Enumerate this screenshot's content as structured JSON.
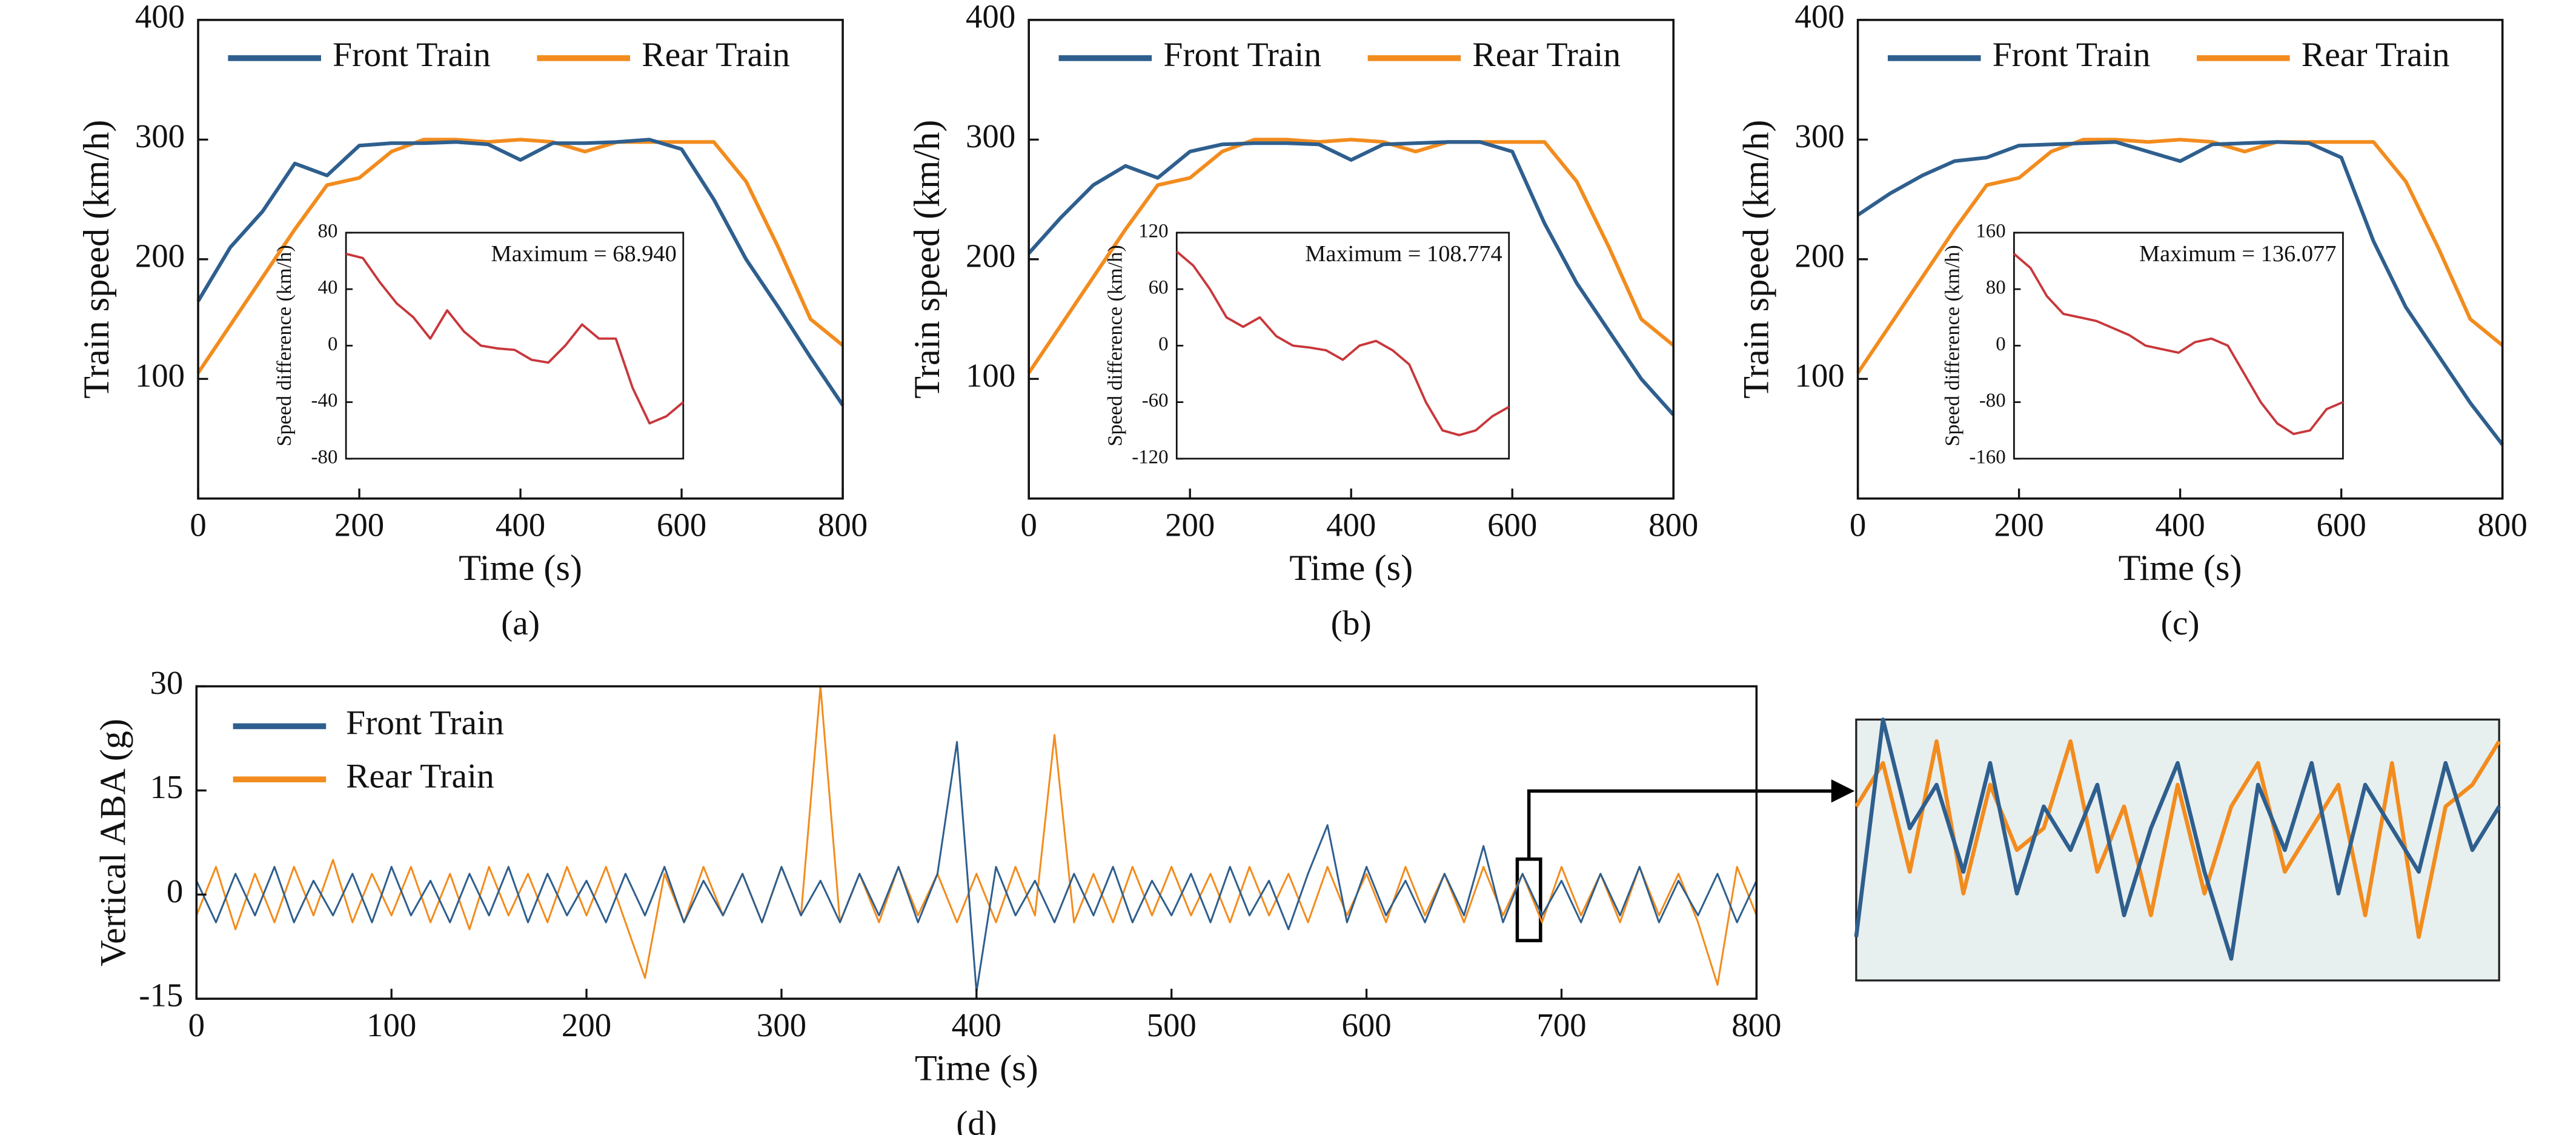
{
  "chart_data": [
    {
      "type": "line",
      "caption": "(a)",
      "xlabel": "Time (s)",
      "ylabel": "Train speed (km/h)",
      "legend": "upper center",
      "x": [
        0,
        40,
        80,
        120,
        160,
        200,
        240,
        280,
        320,
        360,
        400,
        440,
        480,
        520,
        560,
        600,
        640,
        680,
        720,
        760,
        800
      ],
      "xlim": [
        0,
        800
      ],
      "xticks": [
        0,
        200,
        400,
        600,
        800
      ],
      "ylim": [
        0,
        400
      ],
      "yticks": [
        100,
        200,
        300,
        400
      ],
      "series": [
        {
          "name": "Front Train",
          "color": "#2e5f8e",
          "values": [
            165,
            210,
            240,
            280,
            270,
            295,
            297,
            297,
            298,
            296,
            283,
            297,
            297,
            298,
            300,
            292,
            250,
            200,
            160,
            118,
            78
          ]
        },
        {
          "name": "Rear Train",
          "color": "#f28c1e",
          "values": [
            105,
            145,
            185,
            225,
            262,
            268,
            290,
            300,
            300,
            298,
            300,
            298,
            290,
            298,
            298,
            298,
            298,
            265,
            210,
            150,
            128
          ]
        }
      ],
      "inset": {
        "ylabel": "Speed difference (km/h)",
        "annotation": "Maximum = 68.940",
        "ylim": [
          -80,
          80
        ],
        "yticks": [
          -80,
          -40,
          0,
          40,
          80
        ],
        "color": "#c8373b",
        "values": [
          65,
          62,
          45,
          30,
          20,
          5,
          25,
          10,
          0,
          -2,
          -3,
          -10,
          -12,
          0,
          15,
          5,
          5,
          -30,
          -55,
          -50,
          -40
        ]
      }
    },
    {
      "type": "line",
      "caption": "(b)",
      "xlabel": "Time (s)",
      "ylabel": "Train speed (km/h)",
      "legend": "upper center",
      "x": [
        0,
        40,
        80,
        120,
        160,
        200,
        240,
        280,
        320,
        360,
        400,
        440,
        480,
        520,
        560,
        600,
        640,
        680,
        720,
        760,
        800
      ],
      "xlim": [
        0,
        800
      ],
      "xticks": [
        0,
        200,
        400,
        600,
        800
      ],
      "ylim": [
        0,
        400
      ],
      "yticks": [
        100,
        200,
        300,
        400
      ],
      "series": [
        {
          "name": "Front Train",
          "color": "#2e5f8e",
          "values": [
            205,
            235,
            262,
            278,
            268,
            290,
            296,
            297,
            297,
            296,
            283,
            296,
            297,
            298,
            298,
            290,
            230,
            180,
            140,
            100,
            70
          ]
        },
        {
          "name": "Rear Train",
          "color": "#f28c1e",
          "values": [
            105,
            145,
            185,
            225,
            262,
            268,
            290,
            300,
            300,
            298,
            300,
            298,
            290,
            298,
            298,
            298,
            298,
            265,
            210,
            150,
            128
          ]
        }
      ],
      "inset": {
        "ylabel": "Speed difference (km/h)",
        "annotation": "Maximum = 108.774",
        "ylim": [
          -120,
          120
        ],
        "yticks": [
          -120,
          -60,
          0,
          60,
          120
        ],
        "color": "#c8373b",
        "values": [
          100,
          85,
          60,
          30,
          20,
          30,
          10,
          0,
          -2,
          -5,
          -15,
          0,
          5,
          -5,
          -20,
          -60,
          -90,
          -95,
          -90,
          -75,
          -65
        ]
      }
    },
    {
      "type": "line",
      "caption": "(c)",
      "xlabel": "Time (s)",
      "ylabel": "Train speed (km/h)",
      "legend": "upper center",
      "x": [
        0,
        40,
        80,
        120,
        160,
        200,
        240,
        280,
        320,
        360,
        400,
        440,
        480,
        520,
        560,
        600,
        640,
        680,
        720,
        760,
        800
      ],
      "xlim": [
        0,
        800
      ],
      "xticks": [
        0,
        200,
        400,
        600,
        800
      ],
      "ylim": [
        0,
        400
      ],
      "yticks": [
        100,
        200,
        300,
        400
      ],
      "series": [
        {
          "name": "Front Train",
          "color": "#2e5f8e",
          "values": [
            237,
            255,
            270,
            282,
            285,
            295,
            296,
            297,
            298,
            290,
            282,
            296,
            297,
            298,
            297,
            285,
            215,
            160,
            120,
            80,
            45
          ]
        },
        {
          "name": "Rear Train",
          "color": "#f28c1e",
          "values": [
            105,
            145,
            185,
            225,
            262,
            268,
            290,
            300,
            300,
            298,
            300,
            298,
            290,
            298,
            298,
            298,
            298,
            265,
            210,
            150,
            128
          ]
        }
      ],
      "inset": {
        "ylabel": "Speed difference (km/h)",
        "annotation": "Maximum = 136.077",
        "ylim": [
          -160,
          160
        ],
        "yticks": [
          -160,
          -80,
          0,
          80,
          160
        ],
        "color": "#c8373b",
        "values": [
          130,
          110,
          70,
          45,
          40,
          35,
          25,
          15,
          0,
          -5,
          -10,
          5,
          10,
          0,
          -40,
          -80,
          -110,
          -125,
          -120,
          -90,
          -80
        ]
      }
    },
    {
      "type": "line",
      "caption": "(d)",
      "xlabel": "Time (s)",
      "ylabel": "Vertical ABA (g)",
      "legend": "upper left",
      "x": [
        0,
        10,
        20,
        30,
        40,
        50,
        60,
        70,
        80,
        90,
        100,
        110,
        120,
        130,
        140,
        150,
        160,
        170,
        180,
        190,
        200,
        210,
        220,
        230,
        240,
        250,
        260,
        270,
        280,
        290,
        300,
        310,
        320,
        330,
        340,
        350,
        360,
        370,
        380,
        390,
        400,
        410,
        420,
        430,
        440,
        450,
        460,
        470,
        480,
        490,
        500,
        510,
        520,
        530,
        540,
        550,
        560,
        570,
        580,
        590,
        600,
        610,
        620,
        630,
        640,
        650,
        660,
        670,
        680,
        690,
        700,
        710,
        720,
        730,
        740,
        750,
        760,
        770,
        780,
        790,
        800
      ],
      "xlim": [
        0,
        800
      ],
      "xticks": [
        0,
        100,
        200,
        300,
        400,
        500,
        600,
        700,
        800
      ],
      "ylim": [
        -15,
        30
      ],
      "yticks": [
        -15,
        0,
        15,
        30
      ],
      "series": [
        {
          "name": "Front Train",
          "color": "#2e5f8e",
          "values": [
            2,
            -4,
            3,
            -3,
            4,
            -4,
            2,
            -3,
            3,
            -4,
            4,
            -3,
            2,
            -4,
            3,
            -3,
            4,
            -4,
            3,
            -3,
            2,
            -4,
            3,
            -3,
            4,
            -4,
            2,
            -3,
            3,
            -4,
            4,
            -3,
            2,
            -4,
            3,
            -3,
            4,
            -4,
            3,
            22,
            -14,
            4,
            -3,
            2,
            -4,
            3,
            -3,
            4,
            -4,
            2,
            -3,
            3,
            -4,
            4,
            -3,
            2,
            -5,
            3,
            10,
            -4,
            4,
            -3,
            2,
            -4,
            3,
            -3,
            7,
            -4,
            3,
            -3,
            2,
            -4,
            3,
            -3,
            4,
            -4,
            2,
            -3,
            3,
            -4,
            2
          ]
        },
        {
          "name": "Rear Train",
          "color": "#f28c1e",
          "values": [
            -3,
            4,
            -5,
            3,
            -4,
            4,
            -3,
            5,
            -4,
            3,
            -3,
            4,
            -4,
            3,
            -5,
            4,
            -3,
            3,
            -4,
            4,
            -3,
            4,
            -4,
            -12,
            3,
            -4,
            4,
            -3,
            3,
            -4,
            4,
            -3,
            30,
            -4,
            3,
            -4,
            4,
            -3,
            3,
            -4,
            3,
            -4,
            4,
            -3,
            23,
            -4,
            3,
            -4,
            4,
            -3,
            4,
            -3,
            3,
            -4,
            4,
            -3,
            3,
            -4,
            4,
            -3,
            3,
            -4,
            4,
            -3,
            3,
            -4,
            4,
            -3,
            3,
            -4,
            4,
            -3,
            3,
            -4,
            4,
            -3,
            3,
            -4,
            -13,
            4,
            -3
          ]
        }
      ]
    },
    {
      "type": "line",
      "x": [
        677,
        677.5,
        678,
        678.5,
        679,
        679.5,
        680,
        680.5,
        681,
        681.5,
        682,
        682.5,
        683,
        683.5,
        684,
        684.5,
        685,
        685.5,
        686,
        686.5,
        687,
        687.5,
        688,
        688.5,
        689
      ],
      "xlim": [
        677,
        689
      ],
      "ylim": [
        -7,
        5
      ],
      "series": [
        {
          "color": "#2e5f8e",
          "values": [
            -5,
            5,
            0,
            2,
            -2,
            3,
            -3,
            1,
            -1,
            2,
            -4,
            0,
            3,
            -2,
            -6,
            2,
            -1,
            3,
            -3,
            2,
            0,
            -2,
            3,
            -1,
            1
          ]
        },
        {
          "color": "#f28c1e",
          "values": [
            1,
            3,
            -2,
            4,
            -3,
            2,
            -1,
            0,
            4,
            -2,
            1,
            -4,
            2,
            -3,
            1,
            3,
            -2,
            0,
            2,
            -4,
            3,
            -5,
            1,
            2,
            4
          ]
        }
      ]
    }
  ]
}
